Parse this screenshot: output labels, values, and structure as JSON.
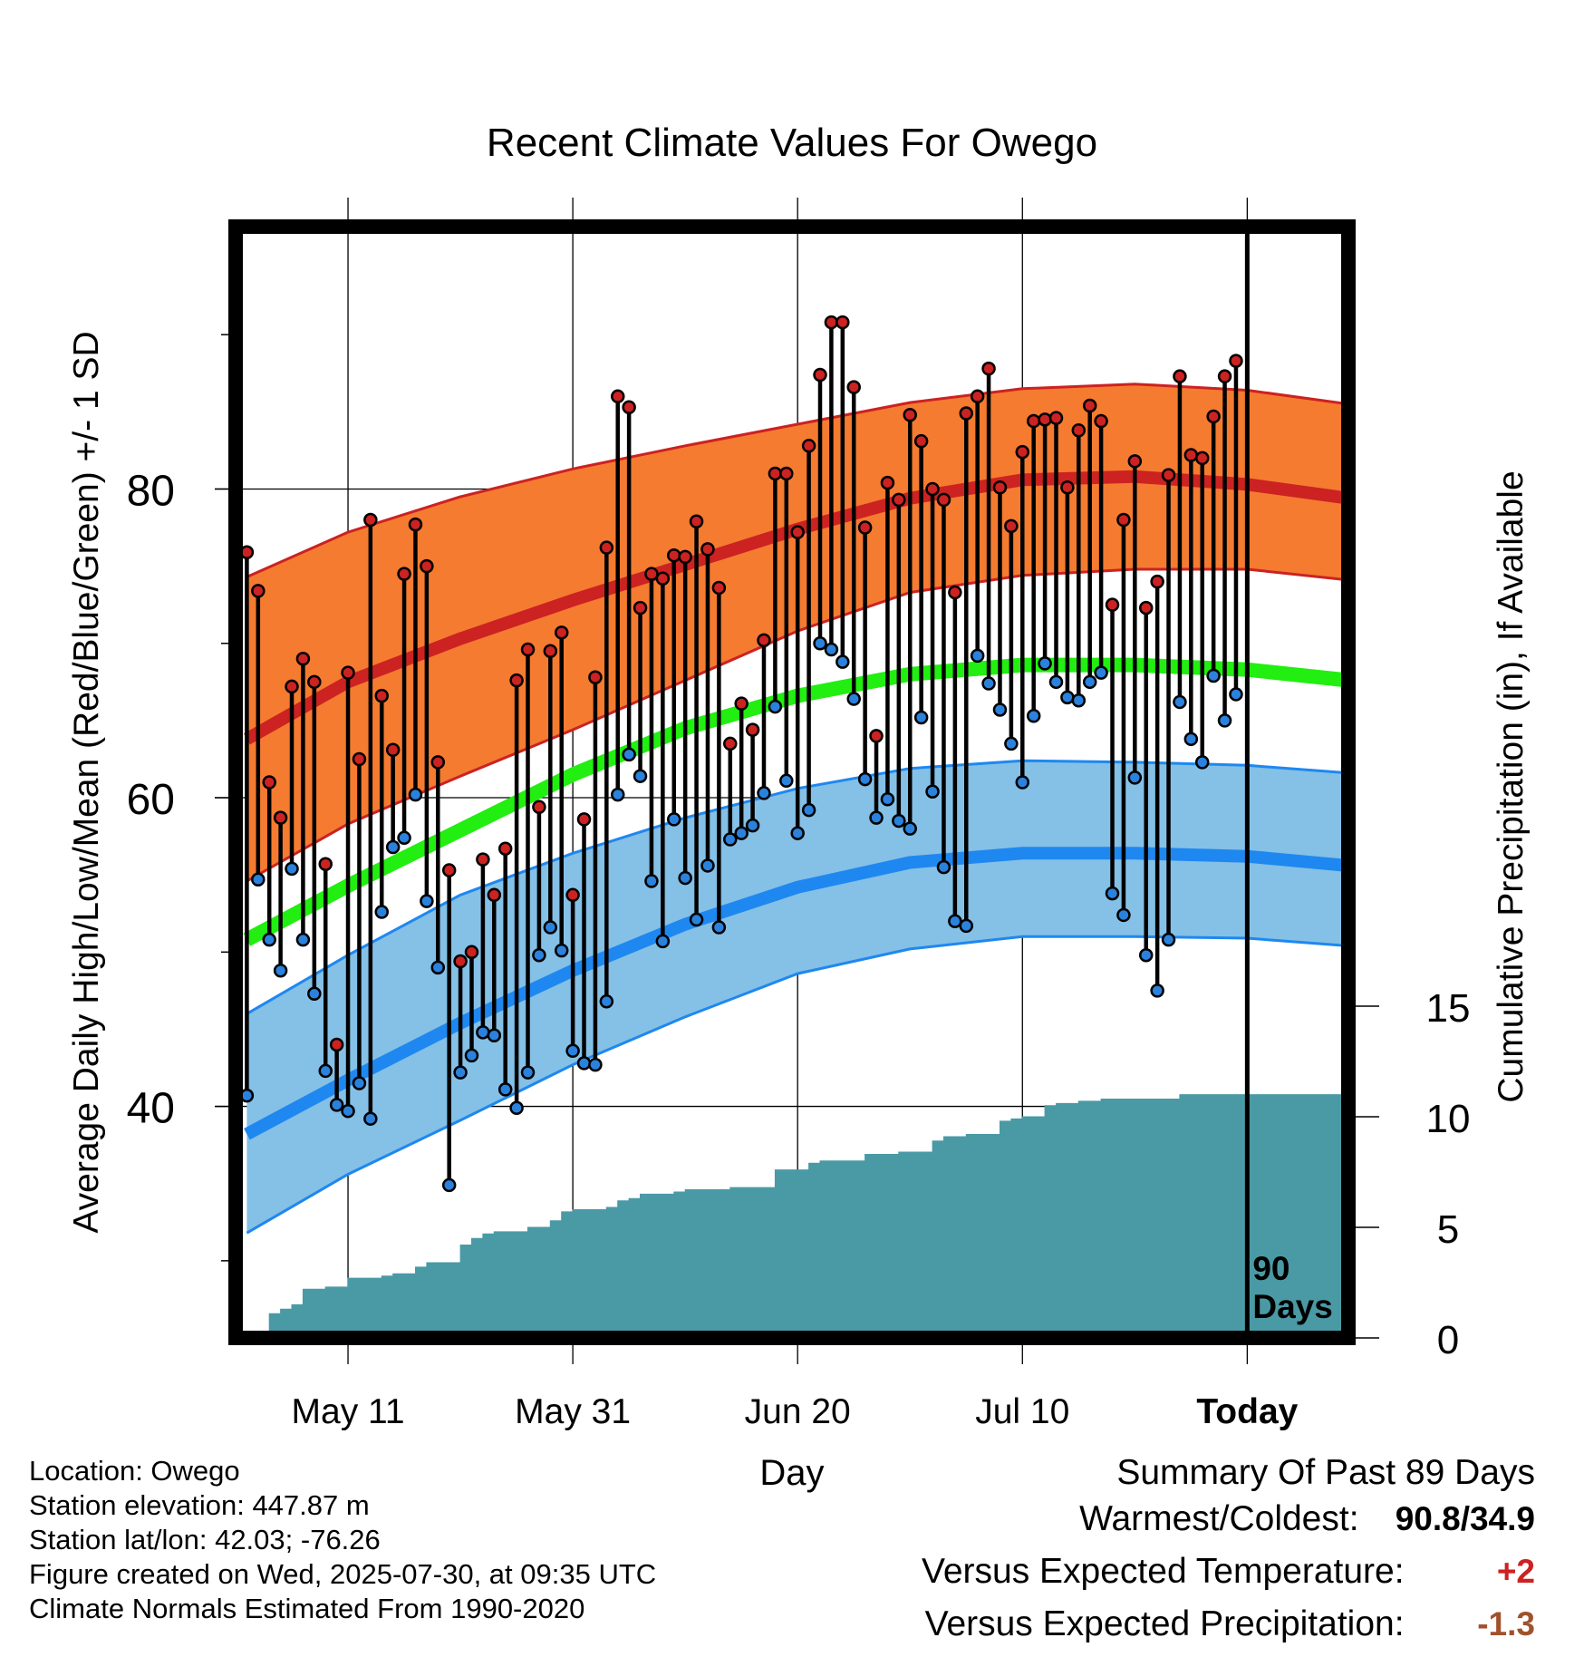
{
  "chart_data": {
    "type": "line",
    "title": "Recent Climate Values For Owego",
    "xlabel": "Day",
    "ylabel": "Average Daily High/Low/Mean (Red/Blue/Green) +/- 1 SD",
    "y2label": "Cumulative Precipitation (in), If Available",
    "ylim": [
      25,
      97
    ],
    "y2lim": [
      0,
      30
    ],
    "yticks": [
      40,
      60,
      80
    ],
    "y2ticks": [
      0,
      5,
      10,
      15
    ],
    "x_tick_labels": [
      "May 11",
      "May 31",
      "Jun 20",
      "Jul 10",
      "Today"
    ],
    "x_tick_days_ago": [
      80,
      60,
      40,
      20,
      0
    ],
    "today_marker_label": [
      "90",
      "Days"
    ],
    "grid": true,
    "normals": {
      "days_ago": [
        89,
        80,
        70,
        60,
        50,
        40,
        30,
        20,
        10,
        0,
        -9
      ],
      "high_plus_sd": [
        74.3,
        77.2,
        79.5,
        81.3,
        82.8,
        84.2,
        85.6,
        86.5,
        86.8,
        86.4,
        85.5
      ],
      "high_mean": [
        63.8,
        67.5,
        70.3,
        72.8,
        75.1,
        77.4,
        79.4,
        80.6,
        80.8,
        80.3,
        79.4
      ],
      "high_minus_sd": [
        54.6,
        58.3,
        61.4,
        64.4,
        67.6,
        70.8,
        73.3,
        74.4,
        74.8,
        74.8,
        74.1
      ],
      "mean": [
        50.8,
        54.3,
        57.9,
        61.5,
        64.5,
        66.6,
        68.0,
        68.6,
        68.6,
        68.3,
        67.6
      ],
      "low_plus_sd": [
        46.0,
        49.8,
        53.7,
        56.4,
        58.7,
        60.6,
        61.9,
        62.4,
        62.3,
        62.1,
        61.6
      ],
      "low_mean": [
        38.2,
        41.7,
        45.4,
        48.8,
        51.8,
        54.2,
        55.8,
        56.4,
        56.4,
        56.2,
        55.6
      ],
      "low_minus_sd": [
        31.8,
        35.6,
        39.1,
        42.7,
        45.8,
        48.6,
        50.2,
        51.0,
        51.0,
        50.9,
        50.4
      ]
    },
    "series": [
      {
        "name": "High",
        "color": "#cc2222",
        "values": [
          75.9,
          73.4,
          61.0,
          58.7,
          67.2,
          69.0,
          67.5,
          55.7,
          44.0,
          68.1,
          62.5,
          78.0,
          66.6,
          63.1,
          74.5,
          77.7,
          75.0,
          62.3,
          55.3,
          49.4,
          50.0,
          56.0,
          53.7,
          56.7,
          67.6,
          69.6,
          59.4,
          69.5,
          70.7,
          53.7,
          58.6,
          67.8,
          76.2,
          86.0,
          85.3,
          72.3,
          74.5,
          74.2,
          75.7,
          75.6,
          77.9,
          76.1,
          73.6,
          63.5,
          66.1,
          64.4,
          70.2,
          81.0,
          81.0,
          77.2,
          82.8,
          87.4,
          90.8,
          90.8,
          86.6,
          77.5,
          64.0,
          80.4,
          79.3,
          84.8,
          83.1,
          80.0,
          79.3,
          73.3,
          84.9,
          86.0,
          87.8,
          80.1,
          77.6,
          82.4,
          84.4,
          84.5,
          84.6,
          80.1,
          83.8,
          85.4,
          84.4,
          72.5,
          78.0,
          81.8,
          72.3,
          74.0,
          80.9,
          87.3,
          82.2,
          82.0,
          84.7,
          87.3,
          88.3
        ]
      },
      {
        "name": "Low",
        "color": "#2a82dd",
        "values": [
          40.7,
          54.7,
          50.8,
          48.8,
          55.4,
          50.8,
          47.3,
          42.3,
          40.1,
          39.7,
          41.5,
          39.2,
          52.6,
          56.8,
          57.4,
          60.2,
          53.3,
          49.0,
          34.9,
          42.2,
          43.3,
          44.8,
          44.6,
          41.1,
          39.9,
          42.2,
          49.8,
          51.6,
          50.1,
          43.6,
          42.8,
          42.7,
          46.8,
          60.2,
          62.8,
          61.4,
          54.6,
          50.7,
          58.6,
          54.8,
          52.1,
          55.6,
          51.6,
          57.3,
          57.7,
          58.2,
          60.3,
          65.9,
          61.1,
          57.7,
          59.2,
          70.0,
          69.6,
          68.8,
          66.4,
          61.2,
          58.7,
          59.9,
          58.5,
          58.0,
          65.2,
          60.4,
          55.5,
          52.0,
          51.7,
          69.2,
          67.4,
          65.7,
          63.5,
          61.0,
          65.3,
          68.7,
          67.5,
          66.5,
          66.3,
          67.5,
          68.1,
          53.8,
          52.4,
          61.3,
          49.8,
          47.5,
          50.8,
          66.2,
          63.8,
          62.3,
          67.9,
          65.0,
          66.7
        ]
      },
      {
        "name": "Cumulative Precipitation",
        "color": "#4a9aa5",
        "axis": "y2",
        "days_ago": [
          88.5,
          87,
          86,
          85,
          84,
          83,
          82,
          80,
          79,
          78,
          77,
          76,
          75,
          74,
          73,
          72,
          71,
          70,
          69,
          68,
          67,
          66,
          65,
          64,
          63,
          62,
          61,
          60,
          58,
          57,
          56,
          55,
          54,
          53,
          52,
          51,
          50,
          48,
          46,
          43,
          42,
          41,
          39,
          38,
          37,
          35,
          34,
          33,
          31,
          30,
          28,
          27,
          26,
          25,
          24,
          22,
          21,
          20,
          19,
          18,
          17,
          16,
          15,
          13,
          12,
          11,
          10,
          9,
          8,
          6,
          5,
          4,
          3,
          2,
          1,
          0,
          -9
        ],
        "values": [
          0.0,
          1.1,
          1.3,
          1.5,
          2.2,
          2.2,
          2.3,
          2.7,
          2.7,
          2.7,
          2.8,
          2.9,
          2.9,
          3.2,
          3.4,
          3.4,
          3.4,
          4.2,
          4.5,
          4.7,
          4.8,
          4.8,
          4.8,
          5.0,
          5.0,
          5.3,
          5.7,
          5.8,
          5.8,
          5.9,
          6.2,
          6.3,
          6.5,
          6.5,
          6.5,
          6.6,
          6.7,
          6.7,
          6.8,
          6.8,
          7.6,
          7.6,
          7.9,
          8.0,
          8.0,
          8.0,
          8.3,
          8.3,
          8.4,
          8.4,
          8.9,
          9.1,
          9.1,
          9.2,
          9.2,
          9.8,
          9.9,
          10.0,
          10.0,
          10.5,
          10.6,
          10.6,
          10.7,
          10.8,
          10.8,
          10.8,
          10.8,
          10.8,
          10.8,
          11.0,
          11.0,
          11.0,
          11.0,
          11.0,
          11.0,
          11.0,
          11.0
        ]
      }
    ]
  },
  "info": {
    "location": "Location: Owego",
    "elevation": "Station elevation: 447.87 m",
    "latlon": "Station lat/lon: 42.03; -76.26",
    "created": "Figure created on Wed, 2025-07-30, at 09:35 UTC",
    "normals": "Climate Normals Estimated From 1990-2020"
  },
  "summary": {
    "heading": "Summary Of Past 89 Days",
    "warm_cold_label": "Warmest/Coldest:",
    "warm_cold_value": "90.8/34.9",
    "temp_label": "Versus Expected Temperature:",
    "temp_value": "+2",
    "temp_color": "#cc2222",
    "precip_label": "Versus Expected Precipitation:",
    "precip_value": "-1.3",
    "precip_color": "#a0522d"
  },
  "colors": {
    "high_band": "#f47b30",
    "high_line": "#cc2222",
    "low_band": "#85c0e6",
    "low_line": "#1e88f0",
    "mean_line": "#22ee11",
    "precip": "#4a9aa5"
  }
}
